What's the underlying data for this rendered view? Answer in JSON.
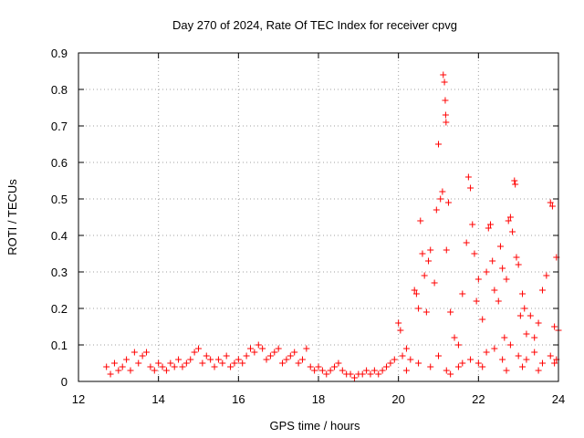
{
  "chart_data": {
    "type": "scatter",
    "title": "Day 270 of 2024, Rate Of TEC Index for receiver cpvg",
    "xlabel": "GPS time / hours",
    "ylabel": "ROTI / TECUs",
    "xlim": [
      12,
      24
    ],
    "ylim": [
      0,
      0.9
    ],
    "xticks": [
      12,
      14,
      16,
      18,
      20,
      22,
      24
    ],
    "yticks": [
      0,
      0.1,
      0.2,
      0.3,
      0.4,
      0.5,
      0.6,
      0.7,
      0.8,
      0.9
    ],
    "ytick_labels": [
      "0",
      "0.1",
      "0.2",
      "0.3",
      "0.4",
      "0.5",
      "0.6",
      "0.7",
      "0.8",
      "0.9"
    ],
    "grid": true,
    "marker": "+",
    "color": "#ff0000",
    "series": [
      {
        "name": "ROTI",
        "points": [
          [
            12.7,
            0.04
          ],
          [
            12.8,
            0.02
          ],
          [
            12.9,
            0.05
          ],
          [
            13.0,
            0.03
          ],
          [
            13.1,
            0.04
          ],
          [
            13.2,
            0.06
          ],
          [
            13.3,
            0.03
          ],
          [
            13.4,
            0.08
          ],
          [
            13.5,
            0.05
          ],
          [
            13.6,
            0.07
          ],
          [
            13.7,
            0.08
          ],
          [
            13.8,
            0.04
          ],
          [
            13.9,
            0.03
          ],
          [
            14.0,
            0.05
          ],
          [
            14.1,
            0.04
          ],
          [
            14.2,
            0.03
          ],
          [
            14.3,
            0.05
          ],
          [
            14.4,
            0.04
          ],
          [
            14.5,
            0.06
          ],
          [
            14.6,
            0.04
          ],
          [
            14.7,
            0.05
          ],
          [
            14.8,
            0.06
          ],
          [
            14.9,
            0.08
          ],
          [
            15.0,
            0.09
          ],
          [
            15.1,
            0.05
          ],
          [
            15.2,
            0.07
          ],
          [
            15.3,
            0.06
          ],
          [
            15.4,
            0.04
          ],
          [
            15.5,
            0.06
          ],
          [
            15.6,
            0.05
          ],
          [
            15.7,
            0.07
          ],
          [
            15.8,
            0.04
          ],
          [
            15.9,
            0.05
          ],
          [
            16.0,
            0.06
          ],
          [
            16.1,
            0.05
          ],
          [
            16.2,
            0.07
          ],
          [
            16.3,
            0.09
          ],
          [
            16.4,
            0.08
          ],
          [
            16.5,
            0.1
          ],
          [
            16.6,
            0.09
          ],
          [
            16.7,
            0.06
          ],
          [
            16.8,
            0.07
          ],
          [
            16.9,
            0.08
          ],
          [
            17.0,
            0.09
          ],
          [
            17.1,
            0.05
          ],
          [
            17.2,
            0.06
          ],
          [
            17.3,
            0.07
          ],
          [
            17.4,
            0.08
          ],
          [
            17.5,
            0.05
          ],
          [
            17.6,
            0.06
          ],
          [
            17.7,
            0.09
          ],
          [
            17.8,
            0.04
          ],
          [
            17.9,
            0.03
          ],
          [
            18.0,
            0.04
          ],
          [
            18.1,
            0.03
          ],
          [
            18.2,
            0.02
          ],
          [
            18.3,
            0.03
          ],
          [
            18.4,
            0.04
          ],
          [
            18.5,
            0.05
          ],
          [
            18.6,
            0.03
          ],
          [
            18.7,
            0.02
          ],
          [
            18.8,
            0.02
          ],
          [
            18.9,
            0.01
          ],
          [
            19.0,
            0.02
          ],
          [
            19.1,
            0.02
          ],
          [
            19.2,
            0.03
          ],
          [
            19.3,
            0.02
          ],
          [
            19.4,
            0.03
          ],
          [
            19.5,
            0.02
          ],
          [
            19.6,
            0.03
          ],
          [
            19.7,
            0.04
          ],
          [
            19.8,
            0.05
          ],
          [
            19.9,
            0.06
          ],
          [
            20.0,
            0.16
          ],
          [
            20.05,
            0.14
          ],
          [
            20.1,
            0.07
          ],
          [
            20.2,
            0.09
          ],
          [
            20.3,
            0.06
          ],
          [
            20.4,
            0.25
          ],
          [
            20.45,
            0.24
          ],
          [
            20.5,
            0.2
          ],
          [
            20.55,
            0.44
          ],
          [
            20.6,
            0.35
          ],
          [
            20.65,
            0.29
          ],
          [
            20.7,
            0.19
          ],
          [
            20.75,
            0.33
          ],
          [
            20.8,
            0.36
          ],
          [
            20.9,
            0.27
          ],
          [
            20.95,
            0.47
          ],
          [
            21.0,
            0.65
          ],
          [
            21.05,
            0.5
          ],
          [
            21.1,
            0.52
          ],
          [
            21.12,
            0.84
          ],
          [
            21.15,
            0.82
          ],
          [
            21.17,
            0.77
          ],
          [
            21.18,
            0.73
          ],
          [
            21.19,
            0.71
          ],
          [
            21.2,
            0.36
          ],
          [
            21.25,
            0.49
          ],
          [
            21.3,
            0.19
          ],
          [
            21.4,
            0.12
          ],
          [
            21.5,
            0.1
          ],
          [
            21.6,
            0.24
          ],
          [
            21.7,
            0.38
          ],
          [
            21.75,
            0.56
          ],
          [
            21.8,
            0.53
          ],
          [
            21.85,
            0.43
          ],
          [
            21.9,
            0.35
          ],
          [
            21.95,
            0.22
          ],
          [
            22.0,
            0.28
          ],
          [
            22.1,
            0.17
          ],
          [
            22.2,
            0.3
          ],
          [
            22.25,
            0.42
          ],
          [
            22.3,
            0.43
          ],
          [
            22.35,
            0.33
          ],
          [
            22.4,
            0.25
          ],
          [
            22.5,
            0.22
          ],
          [
            22.55,
            0.37
          ],
          [
            22.6,
            0.31
          ],
          [
            22.65,
            0.12
          ],
          [
            22.7,
            0.28
          ],
          [
            22.75,
            0.44
          ],
          [
            22.8,
            0.45
          ],
          [
            22.85,
            0.41
          ],
          [
            22.9,
            0.55
          ],
          [
            22.92,
            0.54
          ],
          [
            22.95,
            0.34
          ],
          [
            23.0,
            0.32
          ],
          [
            23.05,
            0.18
          ],
          [
            23.1,
            0.24
          ],
          [
            23.15,
            0.2
          ],
          [
            23.2,
            0.13
          ],
          [
            23.3,
            0.18
          ],
          [
            23.4,
            0.12
          ],
          [
            23.5,
            0.16
          ],
          [
            23.6,
            0.25
          ],
          [
            23.7,
            0.29
          ],
          [
            23.8,
            0.49
          ],
          [
            23.85,
            0.48
          ],
          [
            23.9,
            0.15
          ],
          [
            23.95,
            0.34
          ],
          [
            24.0,
            0.14
          ],
          [
            20.2,
            0.03
          ],
          [
            20.5,
            0.05
          ],
          [
            20.8,
            0.04
          ],
          [
            21.0,
            0.07
          ],
          [
            21.3,
            0.02
          ],
          [
            21.5,
            0.04
          ],
          [
            21.8,
            0.06
          ],
          [
            22.0,
            0.05
          ],
          [
            22.2,
            0.08
          ],
          [
            22.4,
            0.09
          ],
          [
            22.6,
            0.06
          ],
          [
            22.8,
            0.1
          ],
          [
            23.0,
            0.07
          ],
          [
            23.2,
            0.06
          ],
          [
            23.4,
            0.08
          ],
          [
            23.6,
            0.05
          ],
          [
            23.8,
            0.07
          ],
          [
            23.95,
            0.06
          ],
          [
            21.2,
            0.03
          ],
          [
            21.6,
            0.05
          ],
          [
            22.1,
            0.04
          ],
          [
            22.7,
            0.03
          ],
          [
            23.1,
            0.04
          ],
          [
            23.5,
            0.03
          ],
          [
            23.9,
            0.05
          ]
        ]
      }
    ]
  }
}
